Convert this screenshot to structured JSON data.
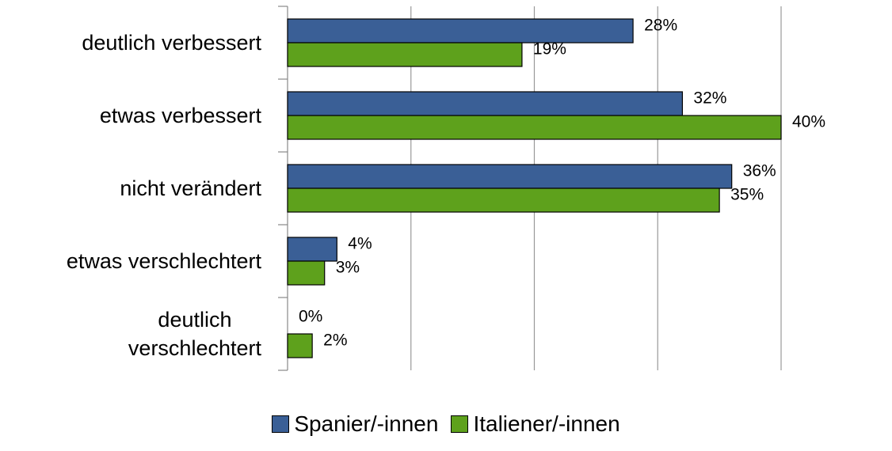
{
  "chart_data": {
    "type": "hbar",
    "categories": [
      "deutlich verbessert",
      "etwas verbessert",
      "nicht verändert",
      "etwas verschlechtert",
      "deutlich\nverschlechtert"
    ],
    "series": [
      {
        "name": "Spanier/-innen",
        "color": "#3a5f96",
        "values": [
          28,
          32,
          36,
          4,
          0
        ],
        "value_labels": [
          "28%",
          "32%",
          "36%",
          "4%",
          "0%"
        ]
      },
      {
        "name": "Italiener/-innen",
        "color": "#5ea11c",
        "values": [
          19,
          40,
          35,
          3,
          2
        ],
        "value_labels": [
          "19%",
          "40%",
          "35%",
          "3%",
          "2%"
        ]
      }
    ],
    "xlim": [
      0,
      40
    ],
    "xticks": [
      0,
      10,
      20,
      30,
      40
    ],
    "grid": true,
    "legend": "bottom"
  }
}
